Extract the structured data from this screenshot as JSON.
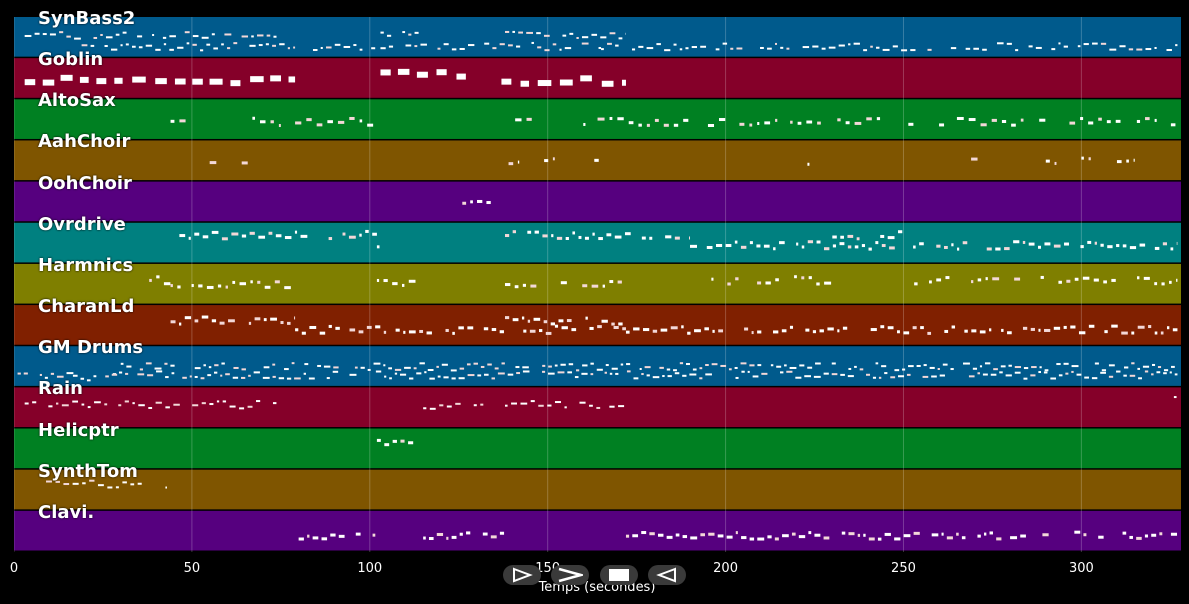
{
  "chart_data": {
    "type": "piano-roll",
    "xlabel": "Temps (secondes)",
    "xlim": [
      0,
      328
    ],
    "x_ticks": [
      "0",
      "50",
      "100",
      "150",
      "200",
      "250",
      "300"
    ],
    "x_tick_values": [
      0,
      50,
      100,
      150,
      200,
      250,
      300
    ],
    "grid": true,
    "tracks": [
      {
        "name": "SynBass2",
        "color": "#005a8c",
        "segments": [
          [
            3,
            79,
            0.45
          ],
          [
            19,
            79,
            0.72
          ],
          [
            82,
            103,
            0.72
          ],
          [
            103,
            114,
            0.45
          ],
          [
            103,
            165,
            0.72
          ],
          [
            138,
            172,
            0.45
          ],
          [
            165,
            327,
            0.72
          ]
        ],
        "density": 0.55,
        "note_h": 2
      },
      {
        "name": "Goblin",
        "color": "#850029",
        "segments": [
          [
            3,
            79,
            0.55
          ],
          [
            103,
            127,
            0.38
          ],
          [
            137,
            172,
            0.55
          ]
        ],
        "density": 0.17,
        "note_h": 6,
        "long": true
      },
      {
        "name": "AltoSax",
        "color": "#008022",
        "segments": [
          [
            44,
            52,
            0.55
          ],
          [
            67,
            75,
            0.55
          ],
          [
            79,
            102,
            0.55
          ],
          [
            138,
            146,
            0.55
          ],
          [
            160,
            327,
            0.55
          ]
        ],
        "density": 0.25,
        "note_h": 3
      },
      {
        "name": "AahChoir",
        "color": "#7f5500",
        "segments": [
          [
            55,
            57,
            0.5
          ],
          [
            64,
            66,
            0.5
          ],
          [
            139,
            142,
            0.5
          ],
          [
            149,
            152,
            0.5
          ],
          [
            158,
            165,
            0.5
          ],
          [
            223,
            227,
            0.5
          ],
          [
            269,
            272,
            0.5
          ],
          [
            281,
            284,
            0.5
          ],
          [
            290,
            293,
            0.5
          ],
          [
            300,
            303,
            0.5
          ],
          [
            310,
            315,
            0.5
          ]
        ],
        "density": 0.3,
        "note_h": 3
      },
      {
        "name": "OohChoir",
        "color": "#56007f",
        "segments": [
          [
            126,
            134,
            0.45
          ]
        ],
        "density": 0.4,
        "note_h": 3
      },
      {
        "name": "Ovrdrive",
        "color": "#008080",
        "segments": [
          [
            44,
            102,
            0.3
          ],
          [
            102,
            102,
            0.58
          ],
          [
            138,
            190,
            0.3
          ],
          [
            190,
            327,
            0.55
          ],
          [
            230,
            250,
            0.3
          ]
        ],
        "density": 0.5,
        "note_h": 3
      },
      {
        "name": "Harmnics",
        "color": "#7f7f00",
        "segments": [
          [
            38,
            44,
            0.4
          ],
          [
            44,
            79,
            0.5
          ],
          [
            102,
            114,
            0.45
          ],
          [
            138,
            172,
            0.5
          ],
          [
            196,
            230,
            0.4
          ],
          [
            253,
            327,
            0.4
          ]
        ],
        "density": 0.35,
        "note_h": 3
      },
      {
        "name": "CharanLd",
        "color": "#802000",
        "segments": [
          [
            44,
            79,
            0.38
          ],
          [
            79,
            172,
            0.6
          ],
          [
            138,
            172,
            0.38
          ],
          [
            172,
            327,
            0.6
          ]
        ],
        "density": 0.5,
        "note_h": 3
      },
      {
        "name": "GM Drums",
        "color": "#005a8c",
        "segments": [
          [
            1,
            327,
            0.7
          ],
          [
            30,
            327,
            0.5
          ],
          [
            14,
            30,
            0.78
          ]
        ],
        "density": 0.6,
        "note_h": 2
      },
      {
        "name": "Rain",
        "color": "#850029",
        "segments": [
          [
            3,
            79,
            0.42
          ],
          [
            115,
            136,
            0.45
          ],
          [
            138,
            172,
            0.42
          ],
          [
            326,
            327,
            0.3
          ]
        ],
        "density": 0.5,
        "note_h": 2
      },
      {
        "name": "Helicptr",
        "color": "#008022",
        "segments": [
          [
            102,
            113,
            0.32
          ]
        ],
        "density": 0.5,
        "note_h": 3
      },
      {
        "name": "SynthTom",
        "color": "#7f5500",
        "segments": [
          [
            9,
            43,
            0.35
          ]
        ],
        "density": 0.5,
        "note_h": 2
      },
      {
        "name": "Clavi.",
        "color": "#56007f",
        "segments": [
          [
            80,
            102,
            0.6
          ],
          [
            115,
            138,
            0.6
          ],
          [
            172,
            327,
            0.6
          ]
        ],
        "density": 0.55,
        "note_h": 3
      }
    ]
  },
  "controls": [
    {
      "name": "play-button",
      "glyph": "play"
    },
    {
      "name": "fast-forward-button",
      "glyph": "forward"
    },
    {
      "name": "stop-button",
      "glyph": "stop"
    },
    {
      "name": "rewind-button",
      "glyph": "rewind"
    }
  ]
}
